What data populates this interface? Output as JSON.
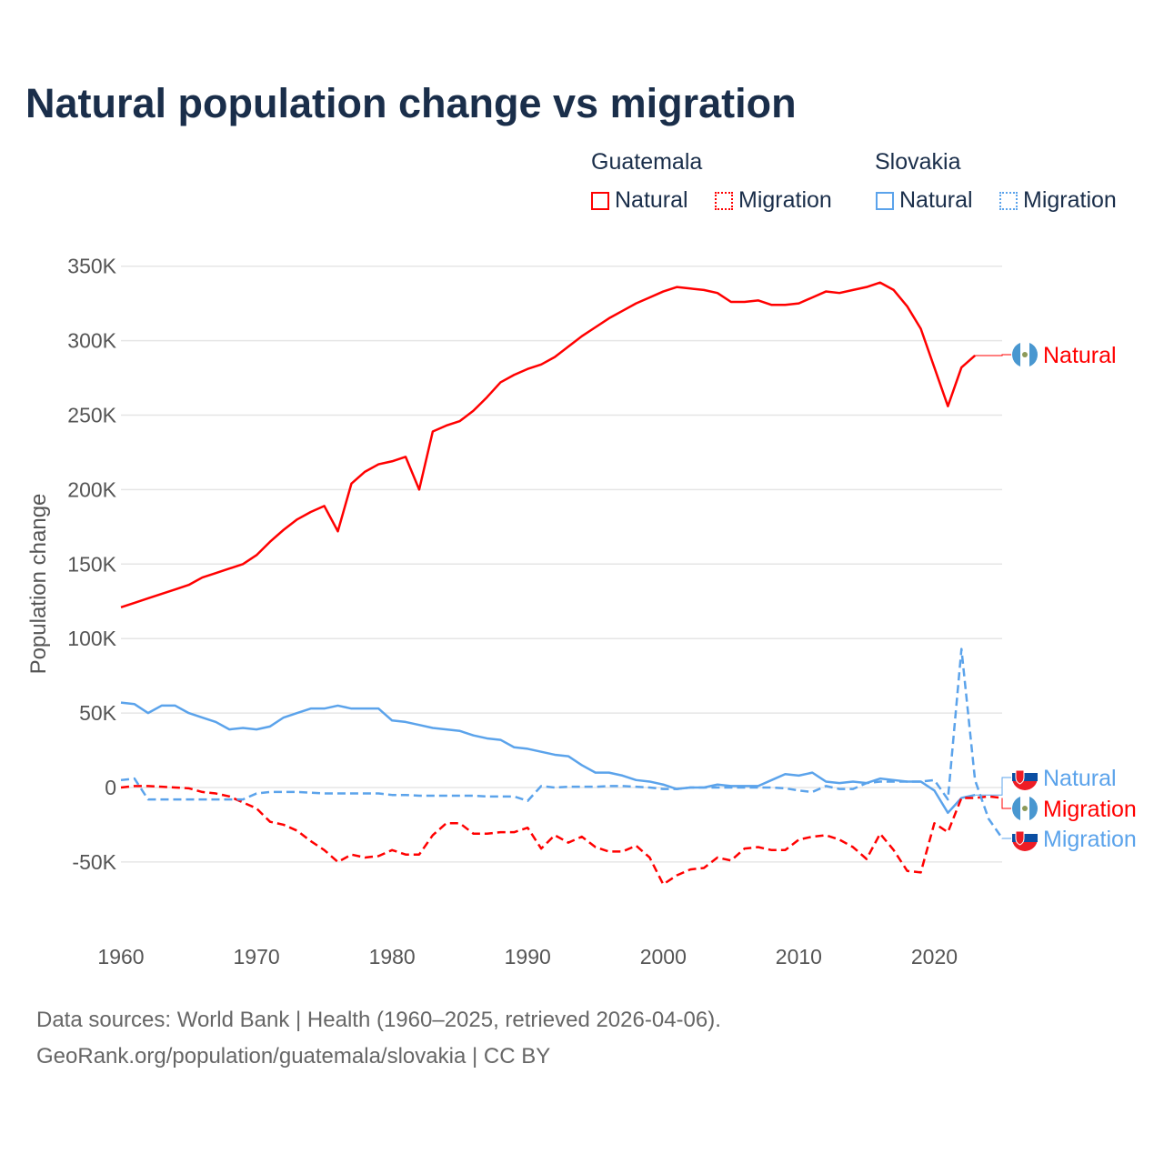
{
  "title": "Natural population change vs migration",
  "legend": {
    "groups": [
      {
        "name": "Guatemala",
        "items": [
          {
            "label": "Natural",
            "style": "solid"
          },
          {
            "label": "Migration",
            "style": "dotted"
          }
        ],
        "color": "#ff0000"
      },
      {
        "name": "Slovakia",
        "items": [
          {
            "label": "Natural",
            "style": "solid"
          },
          {
            "label": "Migration",
            "style": "dotted"
          }
        ],
        "color": "#5ba3eb"
      }
    ]
  },
  "footer": {
    "line1": "Data sources: World Bank | Health (1960–2025, retrieved 2026-04-06).",
    "line2": "GeoRank.org/population/guatemala/slovakia | CC BY"
  },
  "chart_data": {
    "type": "line",
    "title": "Natural population change vs migration",
    "xlabel": "",
    "ylabel": "Population change",
    "xlim": [
      1960,
      2025
    ],
    "ylim": [
      -100000,
      350000
    ],
    "xticks": [
      1960,
      1970,
      1980,
      1990,
      2000,
      2010,
      2020
    ],
    "xtick_labels": [
      "1960",
      "1970",
      "1980",
      "1990",
      "2000",
      "2010",
      "2020"
    ],
    "yticks": [
      350000,
      300000,
      250000,
      200000,
      150000,
      100000,
      50000,
      0,
      -50000
    ],
    "ytick_labels": [
      "350K",
      "300K",
      "250K",
      "200K",
      "150K",
      "100K",
      "50K",
      "0",
      "-50K"
    ],
    "grid": true,
    "series": [
      {
        "name": "Guatemala Natural",
        "end_label": "Natural",
        "color": "#ff0000",
        "dash": false,
        "start": 1960,
        "values_k": [
          121,
          124,
          127,
          130,
          133,
          136,
          141,
          144,
          147,
          150,
          156,
          165,
          173,
          180,
          185,
          189,
          172,
          204,
          212,
          217,
          219,
          222,
          200,
          239,
          243,
          246,
          253,
          262,
          272,
          277,
          281,
          284,
          289,
          296,
          303,
          309,
          315,
          320,
          325,
          329,
          333,
          336,
          335,
          334,
          332,
          326,
          326,
          327,
          324,
          324,
          325,
          329,
          333,
          332,
          334,
          336,
          339,
          334,
          323,
          308,
          282,
          256,
          282,
          290
        ]
      },
      {
        "name": "Slovakia Natural",
        "end_label": "Natural",
        "color": "#5ba3eb",
        "dash": false,
        "start": 1960,
        "values_k": [
          57,
          56,
          50,
          55,
          55,
          50,
          47,
          44,
          39,
          40,
          39,
          41,
          47,
          50,
          53,
          53,
          55,
          53,
          53,
          53,
          45,
          44,
          42,
          40,
          39,
          38,
          35,
          33,
          32,
          27,
          26,
          24,
          22,
          21,
          15,
          10,
          10,
          8,
          5,
          4,
          2,
          -1,
          0,
          0,
          2,
          1,
          1,
          1,
          5,
          9,
          8,
          10,
          4,
          3,
          4,
          3,
          6,
          5,
          4,
          4,
          -2,
          -17,
          -7,
          -5
        ]
      },
      {
        "name": "Guatemala Migration",
        "end_label": "Migration",
        "color": "#ff0000",
        "dash": true,
        "start": 1960,
        "values_k": [
          0,
          1,
          1,
          0.5,
          0,
          -0.5,
          -3,
          -4,
          -6,
          -10,
          -14,
          -23,
          -25,
          -29,
          -36,
          -42,
          -50,
          -45,
          -47,
          -46,
          -42,
          -45,
          -45,
          -32,
          -24,
          -24,
          -31,
          -31,
          -30,
          -30,
          -27,
          -41,
          -32,
          -37,
          -33,
          -40,
          -43,
          -43,
          -39,
          -47,
          -65,
          -59,
          -55,
          -54,
          -47,
          -49,
          -41,
          -40,
          -42,
          -42,
          -35,
          -33,
          -32,
          -35,
          -40,
          -48,
          -31,
          -42,
          -56,
          -57,
          -24,
          -30,
          -7,
          -7,
          -6,
          -7
        ]
      },
      {
        "name": "Slovakia Migration",
        "end_label": "Migration",
        "color": "#5ba3eb",
        "dash": true,
        "start": 1960,
        "values_k": [
          5,
          6,
          -8,
          -8,
          -8,
          -8,
          -8,
          -8,
          -8,
          -8,
          -4,
          -3,
          -3,
          -3,
          -3.5,
          -4,
          -4,
          -4,
          -4,
          -4,
          -5,
          -5,
          -5.5,
          -5.5,
          -5.5,
          -5.5,
          -5.5,
          -6,
          -6,
          -6,
          -9,
          1,
          0,
          0.5,
          0.5,
          0.5,
          1,
          1,
          0.5,
          0,
          -1,
          -1,
          0,
          0,
          0,
          0,
          0,
          0,
          0,
          -0.5,
          -2,
          -3,
          1,
          -1,
          -1,
          3,
          4,
          4,
          4,
          4,
          5,
          -8,
          93,
          5,
          -21,
          -34
        ]
      }
    ]
  }
}
